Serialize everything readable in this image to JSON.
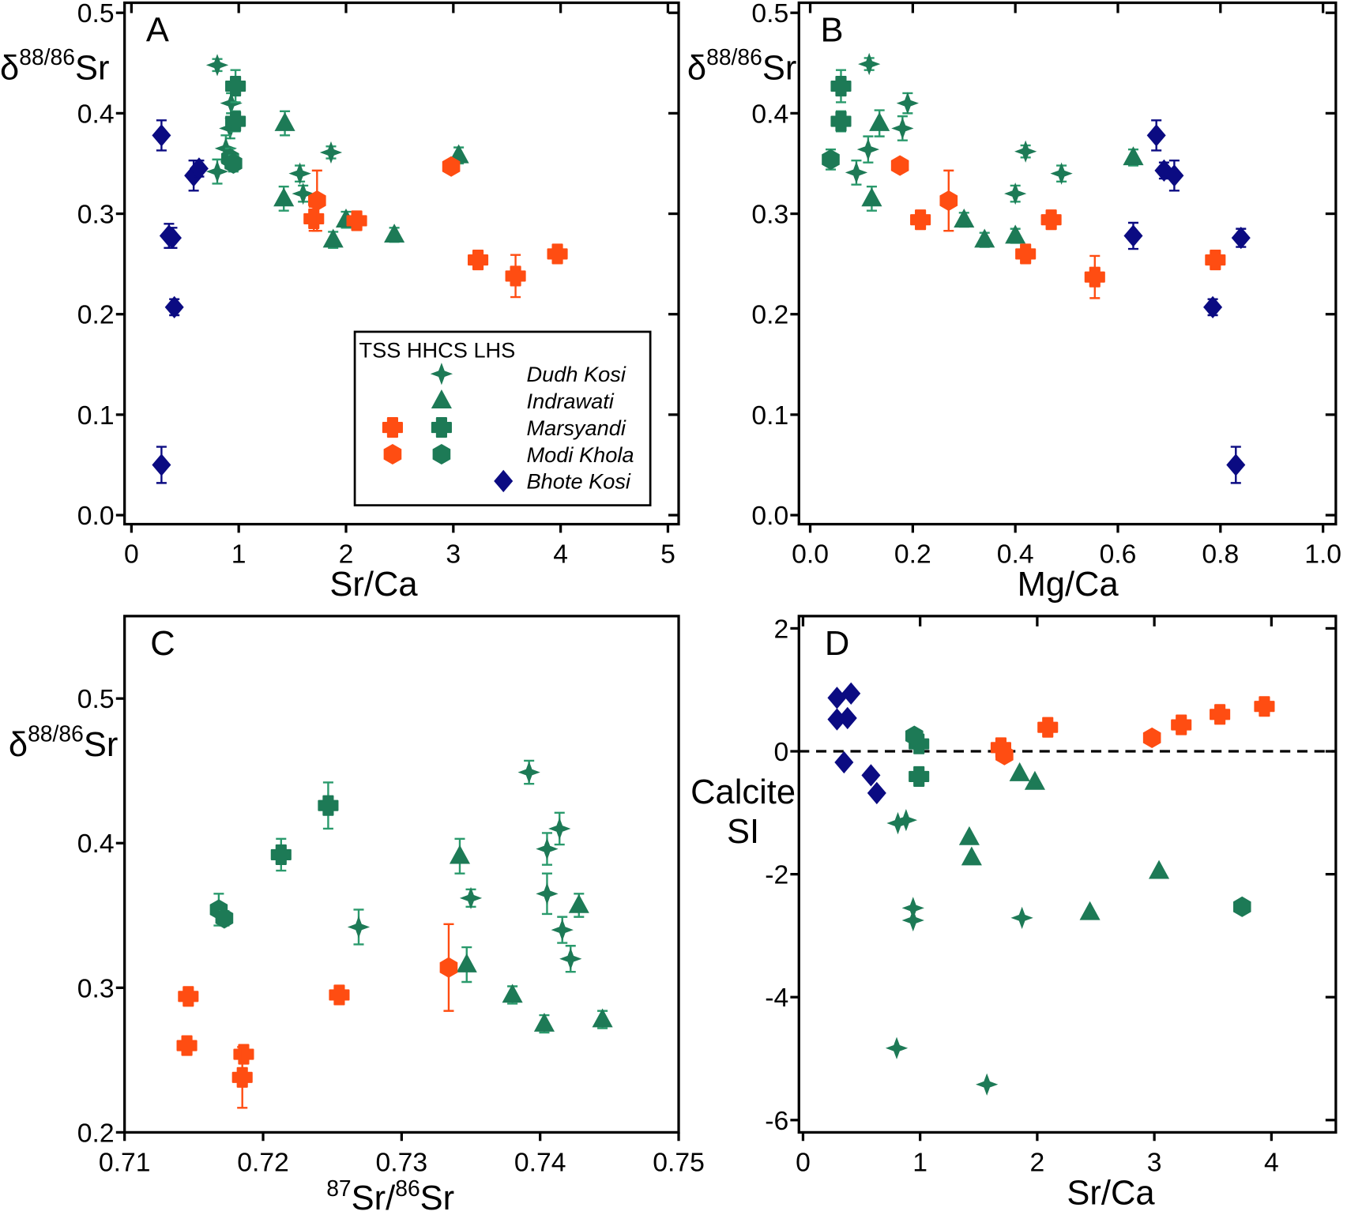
{
  "colors": {
    "HHCS": "#1d7a56",
    "TSS": "#ff4d12",
    "LHS": "#0b0b82",
    "HHCS_error": "#2a9a6c"
  },
  "chart_data": [
    {
      "panel": "A",
      "type": "scatter",
      "xlabel": "Sr/Ca",
      "ylabel_parts": {
        "pre": "δ",
        "sup": "88/86",
        "post": "Sr"
      },
      "xlim": [
        -0.064,
        5.1
      ],
      "ylim": [
        -0.009,
        0.51
      ],
      "xticks": [
        "0",
        "1",
        "2",
        "3",
        "4",
        "5"
      ],
      "xtick_values": [
        0,
        1,
        2,
        3,
        4,
        5
      ],
      "yticks": [
        "0.0",
        "0.1",
        "0.2",
        "0.3",
        "0.4",
        "0.5"
      ],
      "ytick_values": [
        0,
        0.1,
        0.2,
        0.3,
        0.4,
        0.5
      ],
      "legend": {
        "placement": "bottom-right",
        "header": "TSS HHCS LHS",
        "entries": [
          {
            "label": "Dudh Kosi",
            "markers": [
              {
                "group": "HHCS",
                "marker": "star"
              }
            ]
          },
          {
            "label": "Indrawati",
            "markers": [
              {
                "group": "HHCS",
                "marker": "triangle"
              }
            ]
          },
          {
            "label": "Marsyandi",
            "markers": [
              {
                "group": "TSS",
                "marker": "cross"
              },
              {
                "group": "HHCS",
                "marker": "cross"
              }
            ]
          },
          {
            "label": "Modi Khola",
            "markers": [
              {
                "group": "TSS",
                "marker": "hexagon"
              },
              {
                "group": "HHCS",
                "marker": "hexagon"
              }
            ]
          },
          {
            "label": "Bhote Kosi",
            "markers": [
              {
                "group": "LHS",
                "marker": "diamond"
              }
            ]
          }
        ]
      },
      "series": [
        {
          "name": "Dudh Kosi",
          "group": "HHCS",
          "marker": "star",
          "points": [
            [
              0.8,
              0.448,
              0.006
            ],
            [
              0.93,
              0.41,
              0.01
            ],
            [
              0.92,
              0.385,
              0.01
            ],
            [
              0.88,
              0.365,
              0.013
            ],
            [
              0.8,
              0.342,
              0.012
            ],
            [
              1.86,
              0.361,
              0.006
            ],
            [
              1.57,
              0.34,
              0.008
            ],
            [
              1.6,
              0.32,
              0.008
            ]
          ]
        },
        {
          "name": "Indrawati",
          "group": "HHCS",
          "marker": "triangle",
          "points": [
            [
              1.43,
              0.39,
              0.012
            ],
            [
              1.42,
              0.315,
              0.012
            ],
            [
              1.88,
              0.274,
              0.008
            ],
            [
              2.0,
              0.294,
              0.008
            ],
            [
              2.45,
              0.279,
              0.007
            ],
            [
              3.05,
              0.358,
              0.008
            ]
          ]
        },
        {
          "name": "Marsyandi",
          "group": "HHCS",
          "marker": "cross",
          "points": [
            [
              0.97,
              0.427,
              0.016
            ],
            [
              0.97,
              0.392,
              0.01
            ]
          ]
        },
        {
          "name": "Modi Khola",
          "group": "HHCS",
          "marker": "hexagon",
          "points": [
            [
              0.92,
              0.355,
              0.01
            ],
            [
              0.95,
              0.35,
              0.008
            ]
          ]
        },
        {
          "name": "Marsyandi",
          "group": "TSS",
          "marker": "cross",
          "points": [
            [
              1.7,
              0.295,
              0.012
            ],
            [
              2.1,
              0.293,
              0.006
            ],
            [
              3.23,
              0.254,
              0.007
            ],
            [
              3.58,
              0.238,
              0.021
            ],
            [
              3.97,
              0.26,
              0.006
            ]
          ]
        },
        {
          "name": "Modi Khola",
          "group": "TSS",
          "marker": "hexagon",
          "points": [
            [
              1.73,
              0.313,
              0.03
            ],
            [
              2.98,
              0.347,
              0.005
            ]
          ]
        },
        {
          "name": "Bhote Kosi",
          "group": "LHS",
          "marker": "diamond",
          "points": [
            [
              0.28,
              0.378,
              0.015
            ],
            [
              0.58,
              0.338,
              0.015
            ],
            [
              0.63,
              0.345,
              0.008
            ],
            [
              0.35,
              0.278,
              0.012
            ],
            [
              0.38,
              0.276,
              0.01
            ],
            [
              0.4,
              0.207,
              0.008
            ],
            [
              0.28,
              0.05,
              0.018
            ]
          ]
        }
      ]
    },
    {
      "panel": "B",
      "type": "scatter",
      "xlabel": "Mg/Ca",
      "ylabel_parts": {
        "pre": "δ",
        "sup": "88/86",
        "post": "Sr"
      },
      "xlim": [
        -0.022,
        1.025
      ],
      "ylim": [
        -0.009,
        0.51
      ],
      "xticks": [
        "0.0",
        "0.2",
        "0.4",
        "0.6",
        "0.8",
        "1.0"
      ],
      "xtick_values": [
        0,
        0.2,
        0.4,
        0.6,
        0.8,
        1.0
      ],
      "yticks": [
        "0.0",
        "0.1",
        "0.2",
        "0.3",
        "0.4",
        "0.5"
      ],
      "ytick_values": [
        0,
        0.1,
        0.2,
        0.3,
        0.4,
        0.5
      ],
      "series": [
        {
          "name": "Dudh Kosi",
          "group": "HHCS",
          "marker": "star",
          "points": [
            [
              0.115,
              0.449,
              0.006
            ],
            [
              0.19,
              0.41,
              0.01
            ],
            [
              0.18,
              0.385,
              0.012
            ],
            [
              0.113,
              0.364,
              0.013
            ],
            [
              0.09,
              0.341,
              0.012
            ],
            [
              0.42,
              0.362,
              0.006
            ],
            [
              0.4,
              0.32,
              0.008
            ],
            [
              0.49,
              0.34,
              0.008
            ]
          ]
        },
        {
          "name": "Indrawati",
          "group": "HHCS",
          "marker": "triangle",
          "points": [
            [
              0.135,
              0.39,
              0.013
            ],
            [
              0.12,
              0.315,
              0.012
            ],
            [
              0.3,
              0.294,
              0.007
            ],
            [
              0.34,
              0.274,
              0.007
            ],
            [
              0.4,
              0.278,
              0.007
            ],
            [
              0.63,
              0.356,
              0.008
            ]
          ]
        },
        {
          "name": "Marsyandi",
          "group": "HHCS",
          "marker": "cross",
          "points": [
            [
              0.06,
              0.427,
              0.016
            ],
            [
              0.06,
              0.392,
              0.01
            ]
          ]
        },
        {
          "name": "Modi Khola",
          "group": "HHCS",
          "marker": "hexagon",
          "points": [
            [
              0.04,
              0.354,
              0.01
            ]
          ]
        },
        {
          "name": "Marsyandi",
          "group": "TSS",
          "marker": "cross",
          "points": [
            [
              0.215,
              0.294,
              0.004
            ],
            [
              0.42,
              0.26,
              0.004
            ],
            [
              0.47,
              0.294,
              0.004
            ],
            [
              0.555,
              0.237,
              0.021
            ],
            [
              0.79,
              0.254,
              0.004
            ]
          ]
        },
        {
          "name": "Modi Khola",
          "group": "TSS",
          "marker": "hexagon",
          "points": [
            [
              0.175,
              0.348,
              0.003
            ],
            [
              0.27,
              0.313,
              0.03
            ]
          ]
        },
        {
          "name": "Bhote Kosi",
          "group": "LHS",
          "marker": "diamond",
          "points": [
            [
              0.675,
              0.378,
              0.015
            ],
            [
              0.69,
              0.343,
              0.008
            ],
            [
              0.71,
              0.338,
              0.015
            ],
            [
              0.63,
              0.278,
              0.013
            ],
            [
              0.84,
              0.276,
              0.009
            ],
            [
              0.785,
              0.207,
              0.008
            ],
            [
              0.83,
              0.05,
              0.018
            ]
          ]
        }
      ]
    },
    {
      "panel": "C",
      "type": "scatter",
      "xlabel_parts": {
        "sup1": "87",
        "mid": "Sr/",
        "sup2": "86",
        "post": "Sr"
      },
      "ylabel_parts": {
        "pre": "δ",
        "sup": "88/86",
        "post": "Sr"
      },
      "xlim": [
        0.71,
        0.75
      ],
      "ylim": [
        0.2,
        0.557
      ],
      "xticks": [
        "0.71",
        "0.72",
        "0.73",
        "0.74",
        "0.75"
      ],
      "xtick_values": [
        0.71,
        0.72,
        0.73,
        0.74,
        0.75
      ],
      "yticks": [
        "0.2",
        "0.3",
        "0.4",
        "0.5"
      ],
      "ytick_values": [
        0.2,
        0.3,
        0.4,
        0.5
      ],
      "series": [
        {
          "name": "Dudh Kosi",
          "group": "HHCS",
          "marker": "star",
          "points": [
            [
              0.7392,
              0.449,
              0.008
            ],
            [
              0.7414,
              0.41,
              0.011
            ],
            [
              0.7405,
              0.396,
              0.011
            ],
            [
              0.7405,
              0.365,
              0.014
            ],
            [
              0.735,
              0.362,
              0.006
            ],
            [
              0.7269,
              0.342,
              0.012
            ],
            [
              0.7416,
              0.34,
              0.009
            ],
            [
              0.7422,
              0.32,
              0.009
            ]
          ]
        },
        {
          "name": "Indrawati",
          "group": "HHCS",
          "marker": "triangle",
          "points": [
            [
              0.7342,
              0.391,
              0.012
            ],
            [
              0.7347,
              0.316,
              0.012
            ],
            [
              0.738,
              0.295,
              0.006
            ],
            [
              0.7403,
              0.275,
              0.006
            ],
            [
              0.7445,
              0.278,
              0.006
            ],
            [
              0.7428,
              0.357,
              0.008
            ]
          ]
        },
        {
          "name": "Marsyandi",
          "group": "HHCS",
          "marker": "cross",
          "points": [
            [
              0.7247,
              0.426,
              0.016
            ],
            [
              0.7213,
              0.392,
              0.011
            ]
          ]
        },
        {
          "name": "Modi Khola",
          "group": "HHCS",
          "marker": "hexagon",
          "points": [
            [
              0.7168,
              0.354,
              0.011
            ],
            [
              0.7172,
              0.348,
              0.005
            ]
          ]
        },
        {
          "name": "Marsyandi",
          "group": "TSS",
          "marker": "cross",
          "points": [
            [
              0.7146,
              0.294,
              0.004
            ],
            [
              0.7145,
              0.26,
              0.004
            ],
            [
              0.7186,
              0.254,
              0.004
            ],
            [
              0.7185,
              0.238,
              0.021
            ],
            [
              0.7255,
              0.295,
              0.004
            ]
          ]
        },
        {
          "name": "Modi Khola",
          "group": "TSS",
          "marker": "hexagon",
          "points": [
            [
              0.7334,
              0.314,
              0.03
            ]
          ]
        }
      ]
    },
    {
      "panel": "D",
      "type": "scatter",
      "xlabel": "Sr/Ca",
      "ylabel_lines": [
        "Calcite",
        "SI"
      ],
      "xlim": [
        -0.035,
        4.55
      ],
      "ylim": [
        -6.2,
        2.2
      ],
      "xticks": [
        "0",
        "1",
        "2",
        "3",
        "4"
      ],
      "xtick_values": [
        0,
        1,
        2,
        3,
        4
      ],
      "yticks": [
        "2",
        "0",
        "-2",
        "-4",
        "-6"
      ],
      "ytick_values": [
        2,
        0,
        -2,
        -4,
        -6
      ],
      "reference_line": {
        "y": 0,
        "style": "dashed"
      },
      "series": [
        {
          "name": "Dudh Kosi",
          "group": "HHCS",
          "marker": "star",
          "points": [
            [
              0.81,
              -1.17
            ],
            [
              0.88,
              -1.12
            ],
            [
              0.94,
              -2.55
            ],
            [
              0.94,
              -2.75
            ],
            [
              1.87,
              -2.71
            ],
            [
              0.8,
              -4.83
            ],
            [
              1.57,
              -5.42
            ]
          ]
        },
        {
          "name": "Indrawati",
          "group": "HHCS",
          "marker": "triangle",
          "points": [
            [
              1.85,
              -0.36
            ],
            [
              1.98,
              -0.5
            ],
            [
              1.42,
              -1.4
            ],
            [
              1.44,
              -1.73
            ],
            [
              3.04,
              -1.95
            ],
            [
              2.45,
              -2.62
            ]
          ]
        },
        {
          "name": "Marsyandi",
          "group": "HHCS",
          "marker": "cross",
          "points": [
            [
              0.99,
              0.12
            ],
            [
              0.99,
              -0.41
            ]
          ]
        },
        {
          "name": "Modi Khola",
          "group": "HHCS",
          "marker": "hexagon",
          "points": [
            [
              0.95,
              0.25
            ],
            [
              3.75,
              -2.53
            ]
          ]
        },
        {
          "name": "Marsyandi",
          "group": "TSS",
          "marker": "cross",
          "points": [
            [
              1.69,
              0.06
            ],
            [
              2.09,
              0.39
            ],
            [
              3.23,
              0.43
            ],
            [
              3.56,
              0.6
            ],
            [
              3.94,
              0.73
            ]
          ]
        },
        {
          "name": "Modi Khola",
          "group": "TSS",
          "marker": "hexagon",
          "points": [
            [
              1.72,
              -0.06
            ],
            [
              2.98,
              0.22
            ]
          ]
        },
        {
          "name": "Bhote Kosi",
          "group": "LHS",
          "marker": "diamond",
          "points": [
            [
              0.29,
              0.87
            ],
            [
              0.41,
              0.94
            ],
            [
              0.29,
              0.52
            ],
            [
              0.38,
              0.54
            ],
            [
              0.35,
              -0.18
            ],
            [
              0.58,
              -0.39
            ],
            [
              0.63,
              -0.68
            ]
          ]
        }
      ]
    }
  ]
}
